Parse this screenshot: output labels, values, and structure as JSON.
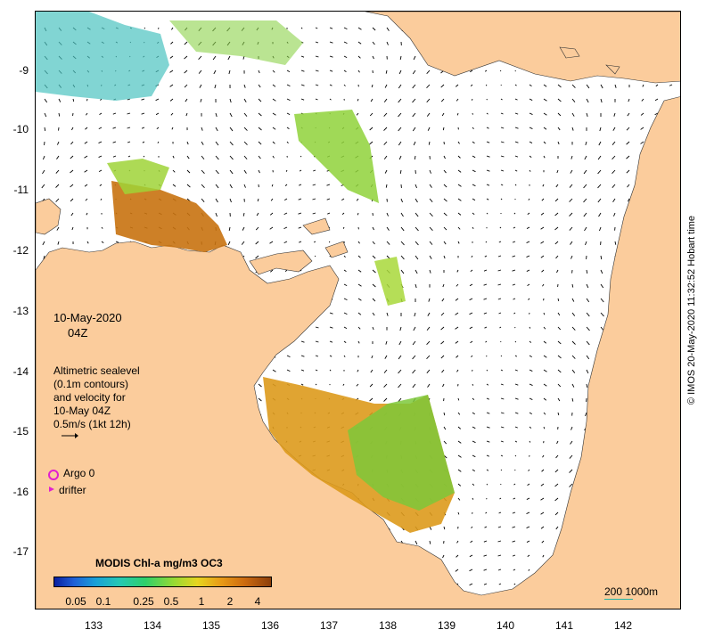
{
  "map": {
    "date": "10-May-2020",
    "time": "04Z",
    "legend_lines": [
      "Altimetric sealevel",
      "(0.1m contours)",
      "and velocity for",
      "10-May 04Z",
      "0.5m/s (1kt 12h)"
    ],
    "argo_label": "Argo 0",
    "drifter_label": "drifter",
    "colorbar_title": "MODIS Chl-a mg/m3 OC3",
    "colorbar_ticks": [
      "0.05",
      "0.1",
      "0.25",
      "0.5",
      "1",
      "2",
      "4"
    ],
    "scale_label": "200  1000m",
    "stamp": "© IMOS 20-May-2020 11:32:52 Hobart time",
    "lat_ticks": [
      "-9",
      "-10",
      "-11",
      "-12",
      "-13",
      "-14",
      "-15",
      "-16",
      "-17"
    ],
    "lon_ticks": [
      "133",
      "134",
      "135",
      "136",
      "137",
      "138",
      "139",
      "140",
      "141",
      "142"
    ]
  },
  "colors": {
    "land": "#fbcc9c",
    "ocean": "#ffffff",
    "vector": "#000000",
    "marker": "#e020d0",
    "scale": "#1fb5a8"
  }
}
